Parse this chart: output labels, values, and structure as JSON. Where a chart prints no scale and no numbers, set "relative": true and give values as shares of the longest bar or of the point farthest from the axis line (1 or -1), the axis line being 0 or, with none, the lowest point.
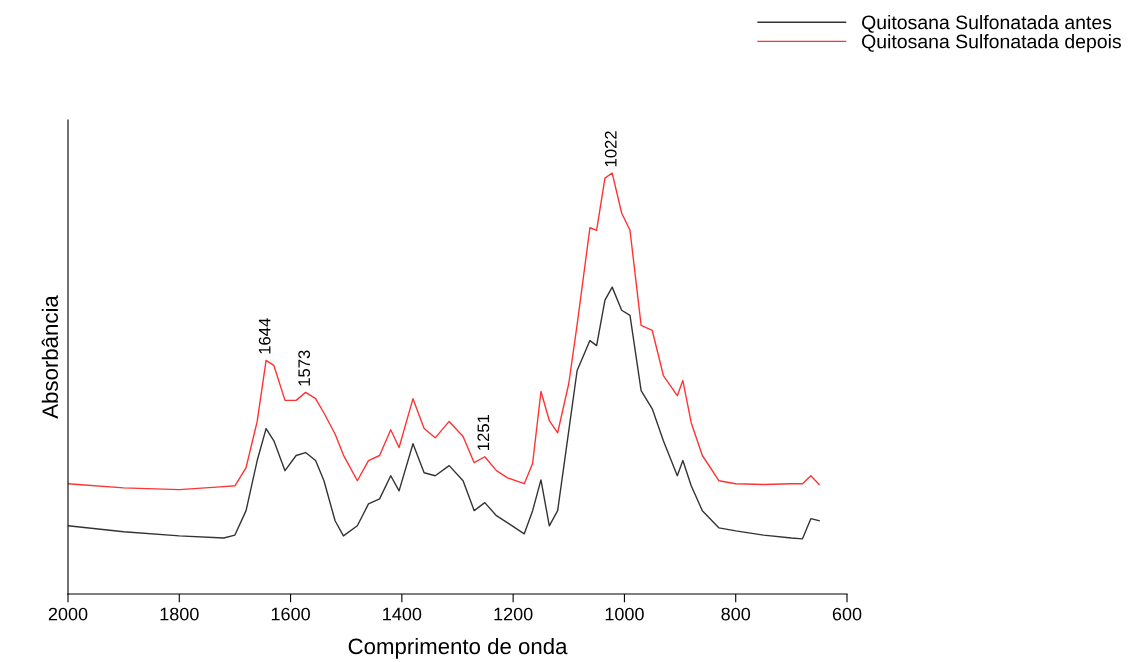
{
  "chart_data": {
    "type": "line",
    "relative": true,
    "xlabel": "Comprimento de onda",
    "ylabel": "Absorbância",
    "xlim": [
      2000,
      600
    ],
    "xticks": [
      2000,
      1800,
      1600,
      1400,
      1200,
      1000,
      800,
      600
    ],
    "legend": "top right",
    "grid": false,
    "marker": "none",
    "line_style": "solid",
    "x": [
      2000,
      1900,
      1800,
      1720,
      1700,
      1680,
      1660,
      1644,
      1630,
      1610,
      1590,
      1573,
      1555,
      1540,
      1520,
      1505,
      1480,
      1460,
      1440,
      1420,
      1405,
      1380,
      1360,
      1340,
      1315,
      1290,
      1270,
      1251,
      1230,
      1210,
      1180,
      1165,
      1150,
      1135,
      1120,
      1100,
      1085,
      1062,
      1050,
      1035,
      1022,
      1005,
      990,
      970,
      950,
      930,
      905,
      895,
      880,
      860,
      830,
      800,
      750,
      700,
      680,
      665,
      650
    ],
    "series": [
      {
        "name": "Quitosana Sulfonatada antes",
        "color": "#333333",
        "values": [
          0.162,
          0.148,
          0.138,
          0.133,
          0.14,
          0.198,
          0.317,
          0.393,
          0.364,
          0.293,
          0.329,
          0.336,
          0.317,
          0.269,
          0.174,
          0.138,
          0.162,
          0.214,
          0.226,
          0.281,
          0.245,
          0.357,
          0.288,
          0.281,
          0.305,
          0.269,
          0.198,
          0.217,
          0.186,
          0.169,
          0.143,
          0.198,
          0.271,
          0.162,
          0.198,
          0.388,
          0.531,
          0.602,
          0.59,
          0.698,
          0.729,
          0.674,
          0.662,
          0.483,
          0.44,
          0.364,
          0.281,
          0.317,
          0.257,
          0.198,
          0.157,
          0.15,
          0.14,
          0.133,
          0.131,
          0.179,
          0.174
        ]
      },
      {
        "name": "Quitosana Sulfonatada depois",
        "color": "#ff3333",
        "values": [
          0.262,
          0.252,
          0.248,
          0.255,
          0.257,
          0.3,
          0.41,
          0.555,
          0.543,
          0.46,
          0.46,
          0.479,
          0.464,
          0.43,
          0.38,
          0.33,
          0.269,
          0.317,
          0.329,
          0.39,
          0.348,
          0.464,
          0.393,
          0.371,
          0.41,
          0.374,
          0.312,
          0.326,
          0.293,
          0.276,
          0.262,
          0.31,
          0.481,
          0.412,
          0.383,
          0.5,
          0.64,
          0.87,
          0.864,
          0.988,
          1.0,
          0.905,
          0.864,
          0.638,
          0.626,
          0.519,
          0.471,
          0.507,
          0.407,
          0.329,
          0.269,
          0.262,
          0.26,
          0.262,
          0.262,
          0.281,
          0.26
        ]
      }
    ],
    "annotations": [
      {
        "text": "1644",
        "x": 1644,
        "y": 0.555
      },
      {
        "text": "1573",
        "x": 1573,
        "y": 0.479
      },
      {
        "text": "1251",
        "x": 1251,
        "y": 0.326
      },
      {
        "text": "1022",
        "x": 1022,
        "y": 1.0
      }
    ]
  }
}
